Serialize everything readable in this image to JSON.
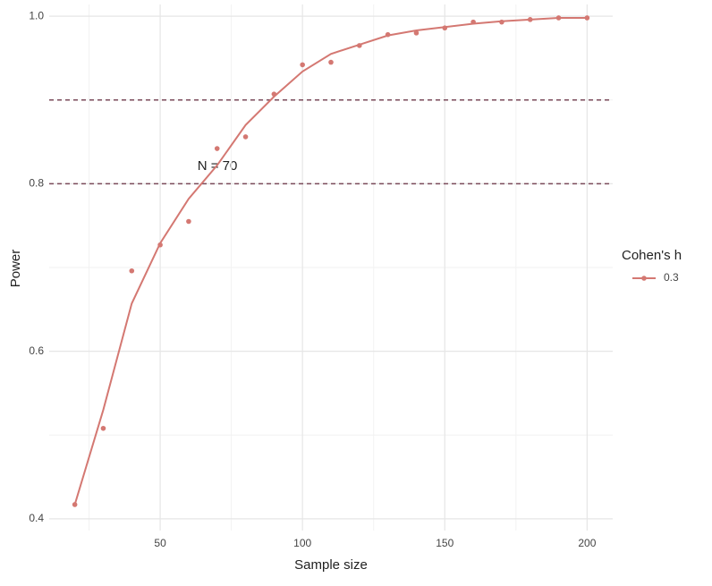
{
  "chart_data": {
    "type": "line",
    "x_label": "Sample size",
    "y_label": "Power",
    "x": [
      20,
      30,
      40,
      50,
      60,
      70,
      80,
      90,
      100,
      110,
      120,
      130,
      140,
      150,
      160,
      170,
      180,
      190,
      200
    ],
    "series": [
      {
        "name": "0.3",
        "color": "#d47872",
        "values": [
          0.417,
          0.508,
          0.696,
          0.727,
          0.755,
          0.842,
          0.856,
          0.907,
          0.942,
          0.945,
          0.965,
          0.978,
          0.98,
          0.986,
          0.993,
          0.993,
          0.996,
          0.998,
          0.998
        ],
        "fit": [
          0.417,
          0.53,
          0.657,
          0.729,
          0.782,
          0.822,
          0.87,
          0.904,
          0.934,
          0.955,
          0.966,
          0.977,
          0.983,
          0.987,
          0.991,
          0.994,
          0.996,
          0.998,
          0.998
        ]
      }
    ],
    "legend_title": "Cohen's h",
    "hlines": [
      0.8,
      0.9
    ],
    "hline_color": "#7a4a5a",
    "annotation": "N = 70",
    "xlim": [
      11,
      209
    ],
    "ylim": [
      0.386,
      1.014
    ],
    "xticks": [
      50,
      100,
      150,
      200
    ],
    "yticks": [
      0.4,
      0.6,
      0.8,
      {
        "value": 1.0,
        "label": "1.0"
      }
    ],
    "grid": true
  }
}
